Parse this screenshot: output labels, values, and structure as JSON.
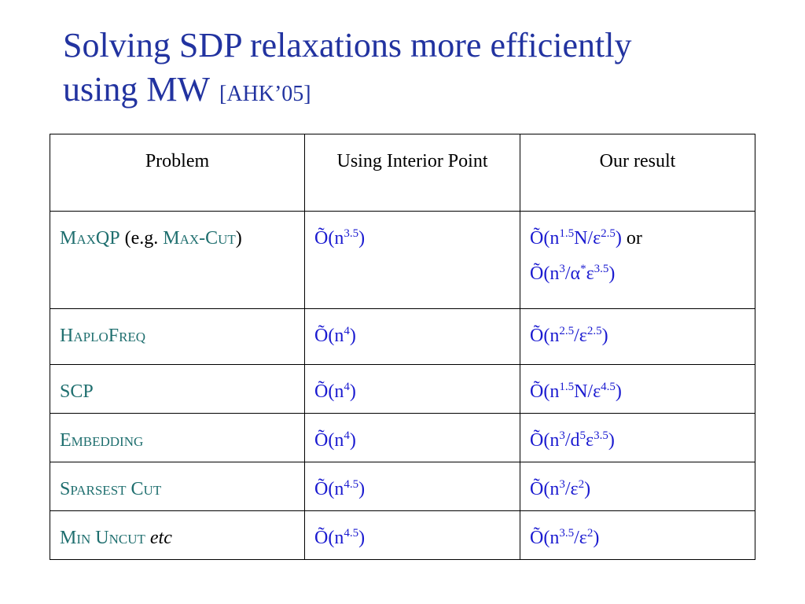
{
  "title": {
    "line1": "Solving SDP relaxations more efficiently",
    "line2": "using MW",
    "citation": "[AHK’05]"
  },
  "table": {
    "header": [
      "Problem",
      "Using Interior Point",
      "Our result"
    ],
    "rows": [
      [
        [
          "MaxQP",
          " (e.g. ",
          "Max-Cut",
          ")"
        ],
        [
          "Õ(n",
          "3.5",
          ")"
        ],
        [
          "Õ(n",
          "1.5",
          "N/ε",
          "2.5",
          ")",
          " or ",
          "Õ(n",
          "3",
          "/α",
          "*",
          "ε",
          "3.5",
          ")"
        ]
      ],
      [
        [
          "HaploFreq"
        ],
        [
          "Õ(n",
          "4",
          ")"
        ],
        [
          "Õ(n",
          "2.5",
          "/ε",
          "2.5",
          ")"
        ]
      ],
      [
        [
          "SCP"
        ],
        [
          "Õ(n",
          "4",
          ")"
        ],
        [
          "Õ(n",
          "1.5",
          "N/ε",
          "4.5",
          ")"
        ]
      ],
      [
        [
          "Embedding"
        ],
        [
          "Õ(n",
          "4",
          ")"
        ],
        [
          "Õ(n",
          "3",
          "/d",
          "5",
          "ε",
          "3.5",
          ")"
        ]
      ],
      [
        [
          "Sparsest Cut"
        ],
        [
          "Õ(n",
          "4.5",
          ")"
        ],
        [
          "Õ(n",
          "3",
          "/ε",
          "2",
          ")"
        ]
      ],
      [
        [
          "Min Uncut",
          "etc"
        ],
        [
          "Õ(n",
          "4.5",
          ")"
        ],
        [
          "Õ(n",
          "3.5",
          "/ε",
          "2",
          ")"
        ]
      ]
    ]
  }
}
